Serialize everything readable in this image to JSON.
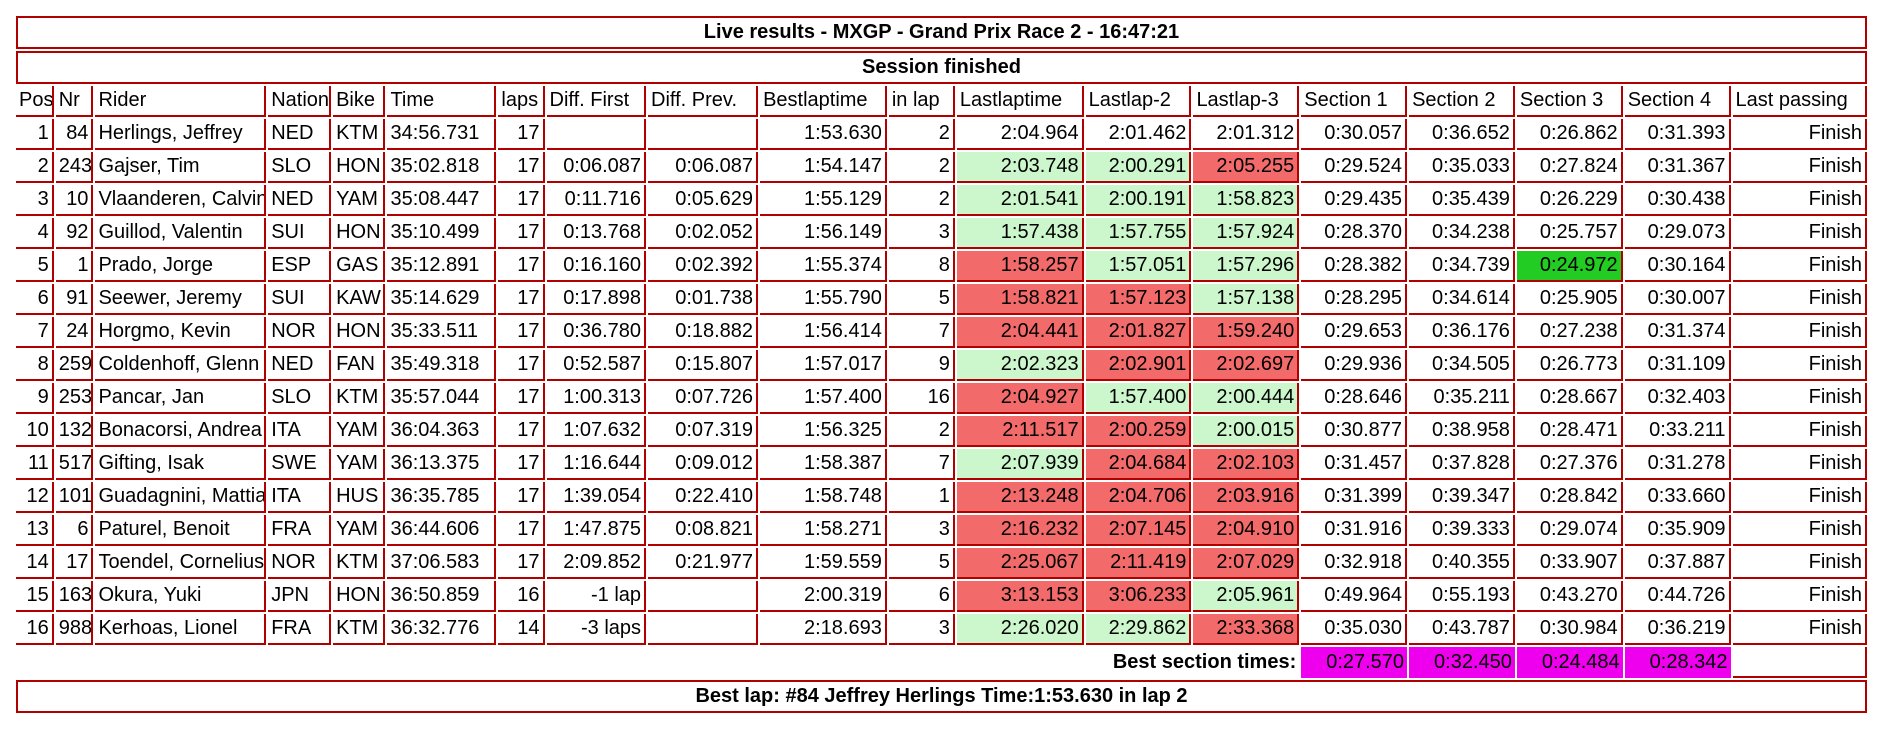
{
  "title": "Live results - MXGP - Grand Prix Race 2 - 16:47:21",
  "status": "Session finished",
  "columns": [
    "Pos",
    "Nr",
    "Rider",
    "Nation",
    "Bike",
    "Time",
    "laps",
    "Diff. First",
    "Diff. Prev.",
    "Bestlaptime",
    "in lap",
    "Lastlaptime",
    "Lastlap-2",
    "Lastlap-3",
    "Section 1",
    "Section 2",
    "Section 3",
    "Section 4",
    "Last passing"
  ],
  "rows": [
    {
      "pos": "1",
      "nr": "84",
      "rider": "Herlings, Jeffrey",
      "nation": "NED",
      "bike": "KTM",
      "time": "34:56.731",
      "laps": "17",
      "diff_first": "",
      "diff_prev": "",
      "bestlap": "1:53.630",
      "in_lap": "2",
      "last1": "2:04.964",
      "last2": "2:01.462",
      "last3": "2:01.312",
      "s1": "0:30.057",
      "s2": "0:36.652",
      "s3": "0:26.862",
      "s4": "0:31.393",
      "passing": "Finish",
      "c1": "",
      "c2": "",
      "c3": "",
      "cs3": ""
    },
    {
      "pos": "2",
      "nr": "243",
      "rider": "Gajser, Tim",
      "nation": "SLO",
      "bike": "HON",
      "time": "35:02.818",
      "laps": "17",
      "diff_first": "0:06.087",
      "diff_prev": "0:06.087",
      "bestlap": "1:54.147",
      "in_lap": "2",
      "last1": "2:03.748",
      "last2": "2:00.291",
      "last3": "2:05.255",
      "s1": "0:29.524",
      "s2": "0:35.033",
      "s3": "0:27.824",
      "s4": "0:31.367",
      "passing": "Finish",
      "c1": "fast",
      "c2": "fast",
      "c3": "slow",
      "cs3": ""
    },
    {
      "pos": "3",
      "nr": "10",
      "rider": "Vlaanderen, Calvin",
      "nation": "NED",
      "bike": "YAM",
      "time": "35:08.447",
      "laps": "17",
      "diff_first": "0:11.716",
      "diff_prev": "0:05.629",
      "bestlap": "1:55.129",
      "in_lap": "2",
      "last1": "2:01.541",
      "last2": "2:00.191",
      "last3": "1:58.823",
      "s1": "0:29.435",
      "s2": "0:35.439",
      "s3": "0:26.229",
      "s4": "0:30.438",
      "passing": "Finish",
      "c1": "fast",
      "c2": "fast",
      "c3": "fast",
      "cs3": ""
    },
    {
      "pos": "4",
      "nr": "92",
      "rider": "Guillod, Valentin",
      "nation": "SUI",
      "bike": "HON",
      "time": "35:10.499",
      "laps": "17",
      "diff_first": "0:13.768",
      "diff_prev": "0:02.052",
      "bestlap": "1:56.149",
      "in_lap": "3",
      "last1": "1:57.438",
      "last2": "1:57.755",
      "last3": "1:57.924",
      "s1": "0:28.370",
      "s2": "0:34.238",
      "s3": "0:25.757",
      "s4": "0:29.073",
      "passing": "Finish",
      "c1": "fast",
      "c2": "fast",
      "c3": "fast",
      "cs3": ""
    },
    {
      "pos": "5",
      "nr": "1",
      "rider": "Prado, Jorge",
      "nation": "ESP",
      "bike": "GAS",
      "time": "35:12.891",
      "laps": "17",
      "diff_first": "0:16.160",
      "diff_prev": "0:02.392",
      "bestlap": "1:55.374",
      "in_lap": "8",
      "last1": "1:58.257",
      "last2": "1:57.051",
      "last3": "1:57.296",
      "s1": "0:28.382",
      "s2": "0:34.739",
      "s3": "0:24.972",
      "s4": "0:30.164",
      "passing": "Finish",
      "c1": "slow",
      "c2": "fast",
      "c3": "fast",
      "cs3": "best"
    },
    {
      "pos": "6",
      "nr": "91",
      "rider": "Seewer, Jeremy",
      "nation": "SUI",
      "bike": "KAW",
      "time": "35:14.629",
      "laps": "17",
      "diff_first": "0:17.898",
      "diff_prev": "0:01.738",
      "bestlap": "1:55.790",
      "in_lap": "5",
      "last1": "1:58.821",
      "last2": "1:57.123",
      "last3": "1:57.138",
      "s1": "0:28.295",
      "s2": "0:34.614",
      "s3": "0:25.905",
      "s4": "0:30.007",
      "passing": "Finish",
      "c1": "slow",
      "c2": "slow",
      "c3": "fast",
      "cs3": ""
    },
    {
      "pos": "7",
      "nr": "24",
      "rider": "Horgmo, Kevin",
      "nation": "NOR",
      "bike": "HON",
      "time": "35:33.511",
      "laps": "17",
      "diff_first": "0:36.780",
      "diff_prev": "0:18.882",
      "bestlap": "1:56.414",
      "in_lap": "7",
      "last1": "2:04.441",
      "last2": "2:01.827",
      "last3": "1:59.240",
      "s1": "0:29.653",
      "s2": "0:36.176",
      "s3": "0:27.238",
      "s4": "0:31.374",
      "passing": "Finish",
      "c1": "slow",
      "c2": "slow",
      "c3": "slow",
      "cs3": ""
    },
    {
      "pos": "8",
      "nr": "259",
      "rider": "Coldenhoff, Glenn",
      "nation": "NED",
      "bike": "FAN",
      "time": "35:49.318",
      "laps": "17",
      "diff_first": "0:52.587",
      "diff_prev": "0:15.807",
      "bestlap": "1:57.017",
      "in_lap": "9",
      "last1": "2:02.323",
      "last2": "2:02.901",
      "last3": "2:02.697",
      "s1": "0:29.936",
      "s2": "0:34.505",
      "s3": "0:26.773",
      "s4": "0:31.109",
      "passing": "Finish",
      "c1": "fast",
      "c2": "slow",
      "c3": "slow",
      "cs3": ""
    },
    {
      "pos": "9",
      "nr": "253",
      "rider": "Pancar, Jan",
      "nation": "SLO",
      "bike": "KTM",
      "time": "35:57.044",
      "laps": "17",
      "diff_first": "1:00.313",
      "diff_prev": "0:07.726",
      "bestlap": "1:57.400",
      "in_lap": "16",
      "last1": "2:04.927",
      "last2": "1:57.400",
      "last3": "2:00.444",
      "s1": "0:28.646",
      "s2": "0:35.211",
      "s3": "0:28.667",
      "s4": "0:32.403",
      "passing": "Finish",
      "c1": "slow",
      "c2": "fast",
      "c3": "fast",
      "cs3": ""
    },
    {
      "pos": "10",
      "nr": "132",
      "rider": "Bonacorsi, Andrea",
      "nation": "ITA",
      "bike": "YAM",
      "time": "36:04.363",
      "laps": "17",
      "diff_first": "1:07.632",
      "diff_prev": "0:07.319",
      "bestlap": "1:56.325",
      "in_lap": "2",
      "last1": "2:11.517",
      "last2": "2:00.259",
      "last3": "2:00.015",
      "s1": "0:30.877",
      "s2": "0:38.958",
      "s3": "0:28.471",
      "s4": "0:33.211",
      "passing": "Finish",
      "c1": "slow",
      "c2": "slow",
      "c3": "fast",
      "cs3": ""
    },
    {
      "pos": "11",
      "nr": "517",
      "rider": "Gifting, Isak",
      "nation": "SWE",
      "bike": "YAM",
      "time": "36:13.375",
      "laps": "17",
      "diff_first": "1:16.644",
      "diff_prev": "0:09.012",
      "bestlap": "1:58.387",
      "in_lap": "7",
      "last1": "2:07.939",
      "last2": "2:04.684",
      "last3": "2:02.103",
      "s1": "0:31.457",
      "s2": "0:37.828",
      "s3": "0:27.376",
      "s4": "0:31.278",
      "passing": "Finish",
      "c1": "fast",
      "c2": "slow",
      "c3": "slow",
      "cs3": ""
    },
    {
      "pos": "12",
      "nr": "101",
      "rider": "Guadagnini, Mattia",
      "nation": "ITA",
      "bike": "HUS",
      "time": "36:35.785",
      "laps": "17",
      "diff_first": "1:39.054",
      "diff_prev": "0:22.410",
      "bestlap": "1:58.748",
      "in_lap": "1",
      "last1": "2:13.248",
      "last2": "2:04.706",
      "last3": "2:03.916",
      "s1": "0:31.399",
      "s2": "0:39.347",
      "s3": "0:28.842",
      "s4": "0:33.660",
      "passing": "Finish",
      "c1": "slow",
      "c2": "slow",
      "c3": "slow",
      "cs3": ""
    },
    {
      "pos": "13",
      "nr": "6",
      "rider": "Paturel, Benoit",
      "nation": "FRA",
      "bike": "YAM",
      "time": "36:44.606",
      "laps": "17",
      "diff_first": "1:47.875",
      "diff_prev": "0:08.821",
      "bestlap": "1:58.271",
      "in_lap": "3",
      "last1": "2:16.232",
      "last2": "2:07.145",
      "last3": "2:04.910",
      "s1": "0:31.916",
      "s2": "0:39.333",
      "s3": "0:29.074",
      "s4": "0:35.909",
      "passing": "Finish",
      "c1": "slow",
      "c2": "slow",
      "c3": "slow",
      "cs3": ""
    },
    {
      "pos": "14",
      "nr": "17",
      "rider": "Toendel, Cornelius",
      "nation": "NOR",
      "bike": "KTM",
      "time": "37:06.583",
      "laps": "17",
      "diff_first": "2:09.852",
      "diff_prev": "0:21.977",
      "bestlap": "1:59.559",
      "in_lap": "5",
      "last1": "2:25.067",
      "last2": "2:11.419",
      "last3": "2:07.029",
      "s1": "0:32.918",
      "s2": "0:40.355",
      "s3": "0:33.907",
      "s4": "0:37.887",
      "passing": "Finish",
      "c1": "slow",
      "c2": "slow",
      "c3": "slow",
      "cs3": ""
    },
    {
      "pos": "15",
      "nr": "163",
      "rider": "Okura, Yuki",
      "nation": "JPN",
      "bike": "HON",
      "time": "36:50.859",
      "laps": "16",
      "diff_first": "-1 lap",
      "diff_prev": "",
      "bestlap": "2:00.319",
      "in_lap": "6",
      "last1": "3:13.153",
      "last2": "3:06.233",
      "last3": "2:05.961",
      "s1": "0:49.964",
      "s2": "0:55.193",
      "s3": "0:43.270",
      "s4": "0:44.726",
      "passing": "Finish",
      "c1": "slow",
      "c2": "slow",
      "c3": "fast",
      "cs3": ""
    },
    {
      "pos": "16",
      "nr": "988",
      "rider": "Kerhoas, Lionel",
      "nation": "FRA",
      "bike": "KTM",
      "time": "36:32.776",
      "laps": "14",
      "diff_first": "-3 laps",
      "diff_prev": "",
      "bestlap": "2:18.693",
      "in_lap": "3",
      "last1": "2:26.020",
      "last2": "2:29.862",
      "last3": "2:33.368",
      "s1": "0:35.030",
      "s2": "0:43.787",
      "s3": "0:30.984",
      "s4": "0:36.219",
      "passing": "Finish",
      "c1": "fast",
      "c2": "fast",
      "c3": "slow",
      "cs3": ""
    }
  ],
  "best_sections": {
    "label": "Best section times:",
    "s1": "0:27.570",
    "s2": "0:32.450",
    "s3": "0:24.484",
    "s4": "0:28.342"
  },
  "best_lap": "Best lap: #84 Jeffrey Herlings Time:1:53.630 in lap 2",
  "colors": {
    "border": "#b00000",
    "faster": "#ccf7cc",
    "slower": "#f26a6a",
    "overall_best": "#22cc22",
    "best_section": "#ee00ee"
  }
}
